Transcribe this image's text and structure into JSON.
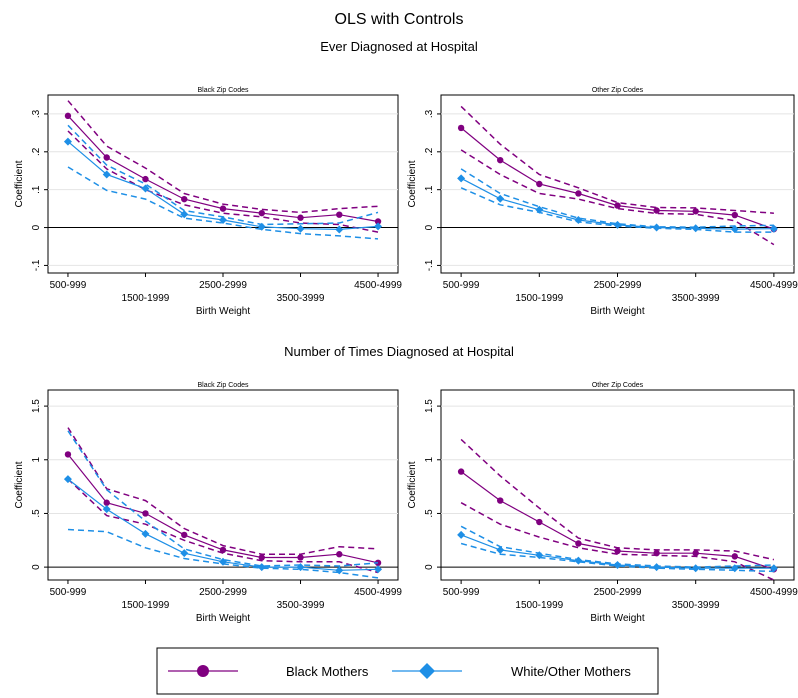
{
  "title": "OLS with Controls",
  "colors": {
    "black_mothers": "#800080",
    "white_other_mothers": "#1e8fe6",
    "grid": "#e4e4e4",
    "zero_line": "#000000"
  },
  "sections": [
    {
      "title": "Ever Diagnosed at Hospital"
    },
    {
      "title": "Number of Times Diagnosed at Hospital"
    }
  ],
  "legend": {
    "items": [
      {
        "label": "Black Mothers",
        "color": "#800080",
        "marker": "circle"
      },
      {
        "label": "White/Other Mothers",
        "color": "#1e8fe6",
        "marker": "diamond"
      }
    ]
  },
  "chart_data": [
    {
      "type": "line",
      "title": "Black Zip Codes",
      "xlabel": "Birth Weight",
      "ylabel": "Coefficient",
      "x": [
        1,
        2,
        3,
        4,
        5,
        6,
        7,
        8,
        9
      ],
      "xticks": [
        {
          "pos": 1,
          "label": "500-999",
          "row": "upper"
        },
        {
          "pos": 3,
          "label": "1500-1999",
          "row": "lower"
        },
        {
          "pos": 5,
          "label": "2500-2999",
          "row": "upper"
        },
        {
          "pos": 7,
          "label": "3500-3999",
          "row": "lower"
        },
        {
          "pos": 9,
          "label": "4500-4999",
          "row": "upper"
        }
      ],
      "ylim": [
        -0.12,
        0.35
      ],
      "yticks": [
        {
          "value": -0.1,
          "label": "-.1"
        },
        {
          "value": 0,
          "label": "0"
        },
        {
          "value": 0.1,
          "label": ".1"
        },
        {
          "value": 0.2,
          "label": ".2"
        },
        {
          "value": 0.3,
          "label": ".3"
        }
      ],
      "series": [
        {
          "name": "Black Mothers",
          "color": "#800080",
          "marker": "circle",
          "values": [
            0.295,
            0.185,
            0.128,
            0.075,
            0.05,
            0.038,
            0.026,
            0.034,
            0.016
          ],
          "ci_low": [
            0.255,
            0.155,
            0.1,
            0.06,
            0.038,
            0.028,
            0.012,
            0.008,
            -0.012
          ],
          "ci_high": [
            0.335,
            0.215,
            0.157,
            0.09,
            0.062,
            0.048,
            0.04,
            0.05,
            0.056
          ]
        },
        {
          "name": "White/Other Mothers",
          "color": "#1e8fe6",
          "marker": "diamond",
          "values": [
            0.227,
            0.14,
            0.103,
            0.035,
            0.02,
            0.002,
            -0.003,
            -0.005,
            0.003
          ],
          "ci_low": [
            0.16,
            0.098,
            0.075,
            0.025,
            0.012,
            -0.005,
            -0.016,
            -0.022,
            -0.03
          ],
          "ci_high": [
            0.27,
            0.165,
            0.115,
            0.045,
            0.028,
            0.008,
            0.01,
            0.012,
            0.04
          ]
        }
      ]
    },
    {
      "type": "line",
      "title": "Other Zip Codes",
      "xlabel": "Birth Weight",
      "ylabel": "Coefficient",
      "x": [
        1,
        2,
        3,
        4,
        5,
        6,
        7,
        8,
        9
      ],
      "xticks": [
        {
          "pos": 1,
          "label": "500-999",
          "row": "upper"
        },
        {
          "pos": 3,
          "label": "1500-1999",
          "row": "lower"
        },
        {
          "pos": 5,
          "label": "2500-2999",
          "row": "upper"
        },
        {
          "pos": 7,
          "label": "3500-3999",
          "row": "lower"
        },
        {
          "pos": 9,
          "label": "4500-4999",
          "row": "upper"
        }
      ],
      "ylim": [
        -0.12,
        0.35
      ],
      "yticks": [
        {
          "value": -0.1,
          "label": "-.1"
        },
        {
          "value": 0,
          "label": "0"
        },
        {
          "value": 0.1,
          "label": ".1"
        },
        {
          "value": 0.2,
          "label": ".2"
        },
        {
          "value": 0.3,
          "label": ".3"
        }
      ],
      "series": [
        {
          "name": "Black Mothers",
          "color": "#800080",
          "marker": "circle",
          "values": [
            0.263,
            0.178,
            0.115,
            0.09,
            0.058,
            0.045,
            0.043,
            0.033,
            -0.004
          ],
          "ci_low": [
            0.205,
            0.14,
            0.09,
            0.075,
            0.05,
            0.037,
            0.035,
            0.018,
            -0.045
          ],
          "ci_high": [
            0.32,
            0.22,
            0.14,
            0.105,
            0.066,
            0.053,
            0.052,
            0.045,
            0.038
          ]
        },
        {
          "name": "White/Other Mothers",
          "color": "#1e8fe6",
          "marker": "diamond",
          "values": [
            0.13,
            0.076,
            0.047,
            0.02,
            0.007,
            0.0,
            -0.002,
            -0.004,
            -0.003
          ],
          "ci_low": [
            0.105,
            0.06,
            0.04,
            0.015,
            0.004,
            -0.002,
            -0.005,
            -0.012,
            -0.012
          ],
          "ci_high": [
            0.155,
            0.09,
            0.055,
            0.025,
            0.01,
            0.002,
            0.001,
            0.004,
            0.006
          ]
        }
      ]
    },
    {
      "type": "line",
      "title": "Black Zip Codes",
      "xlabel": "Birth Weight",
      "ylabel": "Coefficient",
      "x": [
        1,
        2,
        3,
        4,
        5,
        6,
        7,
        8,
        9
      ],
      "xticks": [
        {
          "pos": 1,
          "label": "500-999",
          "row": "upper"
        },
        {
          "pos": 3,
          "label": "1500-1999",
          "row": "lower"
        },
        {
          "pos": 5,
          "label": "2500-2999",
          "row": "upper"
        },
        {
          "pos": 7,
          "label": "3500-3999",
          "row": "lower"
        },
        {
          "pos": 9,
          "label": "4500-4999",
          "row": "upper"
        }
      ],
      "ylim": [
        -0.12,
        1.65
      ],
      "yticks": [
        {
          "value": 0,
          "label": "0"
        },
        {
          "value": 0.5,
          "label": ".5"
        },
        {
          "value": 1,
          "label": "1"
        },
        {
          "value": 1.5,
          "label": "1.5"
        }
      ],
      "series": [
        {
          "name": "Black Mothers",
          "color": "#800080",
          "marker": "circle",
          "values": [
            1.05,
            0.6,
            0.5,
            0.3,
            0.16,
            0.09,
            0.09,
            0.12,
            0.04
          ],
          "ci_low": [
            0.82,
            0.48,
            0.4,
            0.25,
            0.13,
            0.06,
            0.05,
            0.05,
            -0.05
          ],
          "ci_high": [
            1.3,
            0.73,
            0.62,
            0.36,
            0.2,
            0.12,
            0.12,
            0.19,
            0.17
          ]
        },
        {
          "name": "White/Other Mothers",
          "color": "#1e8fe6",
          "marker": "diamond",
          "values": [
            0.82,
            0.54,
            0.31,
            0.13,
            0.05,
            0.0,
            0.0,
            -0.03,
            -0.02
          ],
          "ci_low": [
            0.35,
            0.33,
            0.18,
            0.08,
            0.03,
            -0.01,
            -0.02,
            -0.05,
            -0.1
          ],
          "ci_high": [
            1.27,
            0.72,
            0.43,
            0.17,
            0.07,
            0.01,
            0.02,
            0.01,
            0.04
          ]
        }
      ]
    },
    {
      "type": "line",
      "title": "Other Zip Codes",
      "xlabel": "Birth Weight",
      "ylabel": "Coefficient",
      "x": [
        1,
        2,
        3,
        4,
        5,
        6,
        7,
        8,
        9
      ],
      "xticks": [
        {
          "pos": 1,
          "label": "500-999",
          "row": "upper"
        },
        {
          "pos": 3,
          "label": "1500-1999",
          "row": "lower"
        },
        {
          "pos": 5,
          "label": "2500-2999",
          "row": "upper"
        },
        {
          "pos": 7,
          "label": "3500-3999",
          "row": "lower"
        },
        {
          "pos": 9,
          "label": "4500-4999",
          "row": "upper"
        }
      ],
      "ylim": [
        -0.12,
        1.65
      ],
      "yticks": [
        {
          "value": 0,
          "label": "0"
        },
        {
          "value": 0.5,
          "label": ".5"
        },
        {
          "value": 1,
          "label": "1"
        },
        {
          "value": 1.5,
          "label": "1.5"
        }
      ],
      "series": [
        {
          "name": "Black Mothers",
          "color": "#800080",
          "marker": "circle",
          "values": [
            0.89,
            0.62,
            0.42,
            0.22,
            0.15,
            0.13,
            0.13,
            0.1,
            -0.02
          ],
          "ci_low": [
            0.6,
            0.4,
            0.28,
            0.18,
            0.12,
            0.11,
            0.1,
            0.05,
            -0.12
          ],
          "ci_high": [
            1.19,
            0.85,
            0.55,
            0.27,
            0.18,
            0.16,
            0.16,
            0.15,
            0.07
          ]
        },
        {
          "name": "White/Other Mothers",
          "color": "#1e8fe6",
          "marker": "diamond",
          "values": [
            0.3,
            0.16,
            0.11,
            0.06,
            0.02,
            0.0,
            -0.01,
            -0.01,
            -0.01
          ],
          "ci_low": [
            0.22,
            0.12,
            0.09,
            0.05,
            0.01,
            -0.01,
            -0.02,
            -0.03,
            -0.04
          ],
          "ci_high": [
            0.38,
            0.19,
            0.13,
            0.07,
            0.03,
            0.01,
            0.0,
            0.01,
            0.02
          ]
        }
      ]
    }
  ]
}
